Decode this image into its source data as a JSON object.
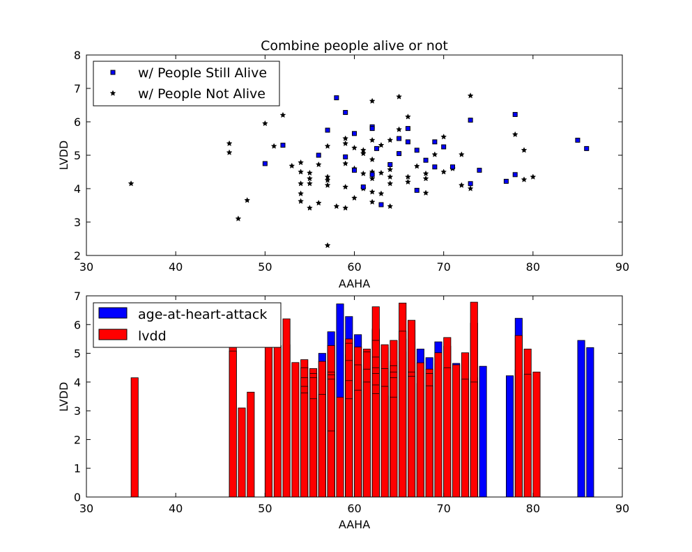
{
  "chart_data": [
    {
      "type": "scatter",
      "title": "Combine people alive or not",
      "xlabel": "AAHA",
      "ylabel": "LVDD",
      "xlim": [
        30,
        90
      ],
      "ylim": [
        2,
        8
      ],
      "xticks": [
        "30",
        "40",
        "50",
        "60",
        "70",
        "80",
        "90"
      ],
      "yticks": [
        "2",
        "3",
        "4",
        "5",
        "6",
        "7",
        "8"
      ],
      "legend_position": "upper-left",
      "series": [
        {
          "name": "w/ People Still Alive",
          "marker": "square",
          "color": "#0000ff",
          "points": [
            [
              50,
              4.75
            ],
            [
              52,
              5.3
            ],
            [
              56,
              5.0
            ],
            [
              57,
              5.75
            ],
            [
              58,
              6.72
            ],
            [
              59,
              6.28
            ],
            [
              59,
              4.95
            ],
            [
              60,
              5.65
            ],
            [
              60,
              4.55
            ],
            [
              61,
              4.05
            ],
            [
              62,
              5.85
            ],
            [
              62,
              5.8
            ],
            [
              62,
              4.42
            ],
            [
              62.5,
              5.2
            ],
            [
              63,
              3.52
            ],
            [
              64,
              4.72
            ],
            [
              65,
              5.5
            ],
            [
              65,
              5.05
            ],
            [
              66,
              5.8
            ],
            [
              66,
              5.4
            ],
            [
              67,
              5.15
            ],
            [
              67,
              3.95
            ],
            [
              68,
              4.85
            ],
            [
              69,
              5.4
            ],
            [
              69,
              4.65
            ],
            [
              70,
              5.25
            ],
            [
              71,
              4.65
            ],
            [
              73,
              6.05
            ],
            [
              73,
              4.15
            ],
            [
              74,
              4.55
            ],
            [
              77,
              4.22
            ],
            [
              78,
              6.22
            ],
            [
              78,
              4.42
            ],
            [
              85,
              5.45
            ],
            [
              86,
              5.2
            ]
          ]
        },
        {
          "name": "w/ People Not Alive",
          "marker": "star",
          "color": "#000000",
          "points": [
            [
              35,
              4.15
            ],
            [
              46,
              5.35
            ],
            [
              46,
              5.08
            ],
            [
              47,
              3.1
            ],
            [
              48,
              3.65
            ],
            [
              50,
              5.95
            ],
            [
              51,
              5.27
            ],
            [
              52,
              6.2
            ],
            [
              53,
              4.68
            ],
            [
              54,
              4.78
            ],
            [
              54,
              4.5
            ],
            [
              54,
              4.15
            ],
            [
              54,
              3.85
            ],
            [
              54,
              3.62
            ],
            [
              55,
              4.47
            ],
            [
              55,
              4.3
            ],
            [
              55,
              4.15
            ],
            [
              55,
              3.42
            ],
            [
              56,
              4.72
            ],
            [
              56,
              3.57
            ],
            [
              57,
              5.27
            ],
            [
              57,
              4.35
            ],
            [
              57,
              4.25
            ],
            [
              57,
              4.1
            ],
            [
              57,
              2.3
            ],
            [
              58,
              3.47
            ],
            [
              59,
              5.5
            ],
            [
              59,
              5.35
            ],
            [
              59,
              4.75
            ],
            [
              59,
              4.05
            ],
            [
              59,
              3.42
            ],
            [
              60,
              5.22
            ],
            [
              60,
              4.6
            ],
            [
              60,
              3.72
            ],
            [
              61,
              5.15
            ],
            [
              61,
              5.05
            ],
            [
              61,
              4.45
            ],
            [
              61,
              4.0
            ],
            [
              62,
              6.62
            ],
            [
              62,
              5.45
            ],
            [
              62,
              4.87
            ],
            [
              62,
              4.5
            ],
            [
              62,
              4.3
            ],
            [
              62,
              3.9
            ],
            [
              62,
              3.6
            ],
            [
              63,
              5.3
            ],
            [
              63,
              4.47
            ],
            [
              63,
              3.85
            ],
            [
              64,
              5.45
            ],
            [
              64,
              4.57
            ],
            [
              64,
              4.35
            ],
            [
              64,
              4.15
            ],
            [
              64,
              3.47
            ],
            [
              65,
              6.75
            ],
            [
              65,
              5.77
            ],
            [
              66,
              6.15
            ],
            [
              66,
              4.35
            ],
            [
              66,
              4.2
            ],
            [
              67,
              4.67
            ],
            [
              68,
              4.45
            ],
            [
              68,
              4.3
            ],
            [
              68,
              3.87
            ],
            [
              69,
              5.02
            ],
            [
              70,
              5.55
            ],
            [
              70,
              4.5
            ],
            [
              71,
              4.6
            ],
            [
              72,
              5.02
            ],
            [
              72,
              4.1
            ],
            [
              73,
              6.78
            ],
            [
              73,
              4.0
            ],
            [
              78,
              5.62
            ],
            [
              79,
              5.15
            ],
            [
              79,
              4.27
            ],
            [
              80,
              4.35
            ]
          ]
        }
      ]
    },
    {
      "type": "bar",
      "xlabel": "AAHA",
      "ylabel": "LVDD",
      "xlim": [
        30,
        90
      ],
      "ylim": [
        0,
        7
      ],
      "xticks": [
        "30",
        "40",
        "50",
        "60",
        "70",
        "80",
        "90"
      ],
      "yticks": [
        "0",
        "1",
        "2",
        "3",
        "4",
        "5",
        "6",
        "7"
      ],
      "legend_position": "upper-left",
      "series": [
        {
          "name": "age-at-heart-attack",
          "color": "#0000ff",
          "bars": [
            [
              50,
              4.75
            ],
            [
              52,
              5.3
            ],
            [
              56,
              5.0
            ],
            [
              57,
              5.75
            ],
            [
              58,
              6.72
            ],
            [
              59,
              6.28
            ],
            [
              59,
              4.95
            ],
            [
              60,
              5.65
            ],
            [
              60,
              4.55
            ],
            [
              61,
              4.05
            ],
            [
              62,
              5.85
            ],
            [
              62,
              5.8
            ],
            [
              62,
              4.42
            ],
            [
              63,
              5.2
            ],
            [
              63,
              3.52
            ],
            [
              64,
              4.72
            ],
            [
              65,
              5.5
            ],
            [
              65,
              5.05
            ],
            [
              66,
              5.8
            ],
            [
              66,
              5.4
            ],
            [
              67,
              5.15
            ],
            [
              67,
              3.95
            ],
            [
              68,
              4.85
            ],
            [
              69,
              5.4
            ],
            [
              69,
              4.65
            ],
            [
              70,
              5.25
            ],
            [
              71,
              4.65
            ],
            [
              73,
              6.05
            ],
            [
              73,
              4.15
            ],
            [
              74,
              4.55
            ],
            [
              77,
              4.22
            ],
            [
              78,
              6.22
            ],
            [
              78,
              4.42
            ],
            [
              85,
              5.45
            ],
            [
              86,
              5.2
            ]
          ]
        },
        {
          "name": "lvdd",
          "color": "#ff0000",
          "bars": [
            [
              35,
              4.15
            ],
            [
              46,
              5.35
            ],
            [
              46,
              5.08
            ],
            [
              47,
              3.1
            ],
            [
              48,
              3.65
            ],
            [
              50,
              5.95
            ],
            [
              51,
              5.27
            ],
            [
              52,
              6.2
            ],
            [
              53,
              4.68
            ],
            [
              54,
              4.78
            ],
            [
              54,
              4.5
            ],
            [
              54,
              4.15
            ],
            [
              54,
              3.85
            ],
            [
              54,
              3.62
            ],
            [
              55,
              4.47
            ],
            [
              55,
              4.3
            ],
            [
              55,
              4.15
            ],
            [
              55,
              3.42
            ],
            [
              56,
              4.72
            ],
            [
              56,
              3.57
            ],
            [
              57,
              5.27
            ],
            [
              57,
              4.35
            ],
            [
              57,
              4.25
            ],
            [
              57,
              4.1
            ],
            [
              57,
              2.3
            ],
            [
              58,
              3.47
            ],
            [
              59,
              5.5
            ],
            [
              59,
              5.35
            ],
            [
              59,
              4.75
            ],
            [
              59,
              4.05
            ],
            [
              59,
              3.42
            ],
            [
              60,
              5.22
            ],
            [
              60,
              4.6
            ],
            [
              60,
              3.72
            ],
            [
              61,
              5.15
            ],
            [
              61,
              5.05
            ],
            [
              61,
              4.45
            ],
            [
              61,
              4.0
            ],
            [
              62,
              6.62
            ],
            [
              62,
              5.45
            ],
            [
              62,
              4.87
            ],
            [
              62,
              4.5
            ],
            [
              62,
              4.3
            ],
            [
              62,
              3.9
            ],
            [
              62,
              3.6
            ],
            [
              63,
              5.3
            ],
            [
              63,
              4.47
            ],
            [
              63,
              3.85
            ],
            [
              64,
              5.45
            ],
            [
              64,
              4.57
            ],
            [
              64,
              4.35
            ],
            [
              64,
              4.15
            ],
            [
              64,
              3.47
            ],
            [
              65,
              6.75
            ],
            [
              65,
              5.77
            ],
            [
              66,
              6.15
            ],
            [
              66,
              4.35
            ],
            [
              66,
              4.2
            ],
            [
              67,
              4.67
            ],
            [
              68,
              4.45
            ],
            [
              68,
              4.3
            ],
            [
              68,
              3.87
            ],
            [
              69,
              5.02
            ],
            [
              70,
              5.55
            ],
            [
              70,
              4.5
            ],
            [
              71,
              4.6
            ],
            [
              72,
              5.02
            ],
            [
              72,
              4.1
            ],
            [
              73,
              6.78
            ],
            [
              73,
              4.0
            ],
            [
              78,
              5.62
            ],
            [
              79,
              5.15
            ],
            [
              79,
              4.27
            ],
            [
              80,
              4.35
            ]
          ]
        }
      ]
    }
  ]
}
